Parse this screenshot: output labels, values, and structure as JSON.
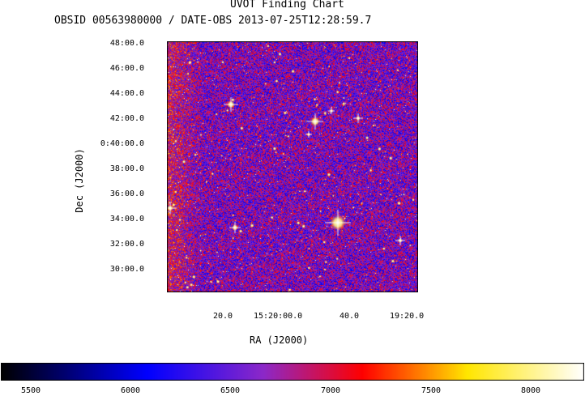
{
  "header": {
    "title": "UVOT Finding Chart",
    "subtitle": "OBSID 00563980000 / DATE-OBS 2013-07-25T12:28:59.7"
  },
  "axes": {
    "y_label": "Dec (J2000)",
    "x_label": "RA (J2000)",
    "y_ticks": [
      "48:00.0",
      "46:00.0",
      "44:00.0",
      "42:00.0",
      "0:40:00.0",
      "38:00.0",
      "36:00.0",
      "34:00.0",
      "32:00.0",
      "30:00.0"
    ],
    "x_ticks": [
      "20.0",
      "15:20:00.0",
      "40.0",
      "19:20.0"
    ]
  },
  "image": {
    "description_colors": [
      "#000000",
      "#0000ff",
      "#8a2be2",
      "#ff0000",
      "#ffff00",
      "#ffffff"
    ],
    "stars": [
      {
        "name": "bright-star-1",
        "intensity": 1.0
      },
      {
        "name": "bright-star-2",
        "intensity": 0.7
      },
      {
        "name": "bright-star-3",
        "intensity": 0.6
      },
      {
        "name": "bright-star-4",
        "intensity": 0.5
      },
      {
        "name": "bright-star-5",
        "intensity": 0.5
      }
    ]
  },
  "colorbar": {
    "ticks": [
      "5500",
      "6000",
      "6500",
      "7000",
      "7500",
      "8000"
    ],
    "min": 5350,
    "max": 8250
  }
}
